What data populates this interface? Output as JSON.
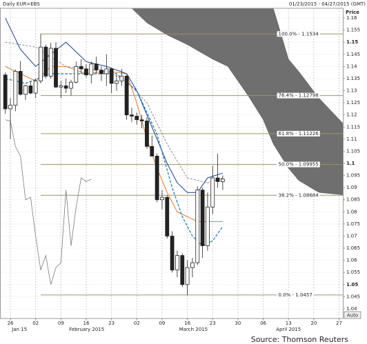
{
  "header": {
    "title": "Daily EUR=EBS",
    "range": "01/23/2015 - 04/27/2015 (GMT)",
    "axis_title": "Price",
    "auto_button": "Auto"
  },
  "source": "Source: Thomson Reuters",
  "chart_data": {
    "type": "candlestick",
    "xlim": [
      -1.05,
      66.75
    ],
    "xticks": [
      {
        "value": 1,
        "label": "26"
      },
      {
        "value": 6,
        "label": "02"
      },
      {
        "value": 11,
        "label": "09"
      },
      {
        "value": 16,
        "label": "16"
      },
      {
        "value": 21,
        "label": "23"
      },
      {
        "value": 26,
        "label": "02"
      },
      {
        "value": 31,
        "label": "09"
      },
      {
        "value": 36,
        "label": "16"
      },
      {
        "value": 41,
        "label": "23"
      },
      {
        "value": 46,
        "label": "30"
      },
      {
        "value": 51,
        "label": "06"
      },
      {
        "value": 56,
        "label": "13"
      },
      {
        "value": 61,
        "label": "20"
      },
      {
        "value": 66,
        "label": "27"
      }
    ],
    "months": [
      {
        "value": 2.8,
        "label": "Jan 15"
      },
      {
        "value": 16.1,
        "label": "February 2015"
      },
      {
        "value": 37.2,
        "label": "March 2015"
      },
      {
        "value": 56,
        "label": "April 2015"
      }
    ],
    "ylim": [
      1.036,
      1.164
    ],
    "yticks": [
      1.04,
      1.045,
      1.05,
      1.055,
      1.06,
      1.065,
      1.07,
      1.075,
      1.08,
      1.085,
      1.09,
      1.095,
      1.1,
      1.105,
      1.11,
      1.115,
      1.12,
      1.125,
      1.13,
      1.135,
      1.14,
      1.145,
      1.15,
      1.155,
      1.16
    ],
    "grid": true,
    "candles": {
      "x": [
        0,
        1,
        2,
        3,
        4,
        5,
        6,
        7,
        8,
        9,
        10,
        11,
        12,
        13,
        14,
        15,
        16,
        17,
        18,
        19,
        20,
        21,
        22,
        23,
        24,
        25,
        26,
        27,
        28,
        29,
        30,
        31,
        32,
        33,
        34,
        35,
        36,
        37,
        38,
        39,
        40,
        41,
        42,
        43
      ],
      "open": [
        1.1365,
        1.1225,
        1.124,
        1.138,
        1.1285,
        1.132,
        1.129,
        1.134,
        1.148,
        1.136,
        1.1475,
        1.1315,
        1.132,
        1.131,
        1.1335,
        1.14,
        1.139,
        1.1365,
        1.141,
        1.1385,
        1.137,
        1.139,
        1.133,
        1.134,
        1.136,
        1.12,
        1.1195,
        1.118,
        1.1175,
        1.107,
        1.103,
        1.085,
        1.086,
        1.07,
        1.056,
        1.062,
        1.05,
        1.057,
        1.059,
        1.089,
        1.066,
        1.082,
        1.094,
        1.0925
      ],
      "high": [
        1.1375,
        1.127,
        1.1387,
        1.1422,
        1.1325,
        1.134,
        1.135,
        1.1534,
        1.149,
        1.1497,
        1.15,
        1.134,
        1.135,
        1.1345,
        1.142,
        1.143,
        1.141,
        1.142,
        1.144,
        1.14,
        1.145,
        1.1395,
        1.1365,
        1.139,
        1.1365,
        1.123,
        1.121,
        1.12,
        1.119,
        1.1115,
        1.104,
        1.089,
        1.087,
        1.072,
        1.064,
        1.063,
        1.06,
        1.061,
        1.0905,
        1.09,
        1.088,
        1.099,
        1.104,
        1.095
      ],
      "low": [
        1.1205,
        1.11,
        1.1215,
        1.128,
        1.1262,
        1.1285,
        1.127,
        1.133,
        1.135,
        1.135,
        1.131,
        1.127,
        1.129,
        1.128,
        1.133,
        1.137,
        1.1355,
        1.133,
        1.137,
        1.134,
        1.132,
        1.129,
        1.13,
        1.132,
        1.118,
        1.117,
        1.116,
        1.1145,
        1.106,
        1.103,
        1.084,
        1.081,
        1.069,
        1.055,
        1.053,
        1.049,
        1.0457,
        1.053,
        1.058,
        1.061,
        1.064,
        1.079,
        1.09,
        1.089
      ],
      "close": [
        1.1225,
        1.124,
        1.138,
        1.1285,
        1.132,
        1.129,
        1.134,
        1.148,
        1.136,
        1.1475,
        1.1315,
        1.132,
        1.131,
        1.1335,
        1.14,
        1.139,
        1.1365,
        1.141,
        1.1385,
        1.137,
        1.139,
        1.133,
        1.134,
        1.136,
        1.12,
        1.1195,
        1.118,
        1.1175,
        1.107,
        1.103,
        1.085,
        1.086,
        1.07,
        1.056,
        1.062,
        1.05,
        1.057,
        1.059,
        1.089,
        1.066,
        1.082,
        1.094,
        1.0925,
        1.0935
      ]
    },
    "lines": [
      {
        "color": "#8a8a8a",
        "dash": "3,2",
        "width": 1,
        "x": [
          0,
          6,
          12,
          20,
          24,
          28,
          32,
          36,
          40,
          43
        ],
        "values": [
          1.15,
          1.148,
          1.14,
          1.138,
          1.134,
          1.125,
          1.108,
          1.094,
          1.092,
          1.094
        ]
      },
      {
        "color": "#e07a2a",
        "dash": "",
        "width": 1,
        "x": [
          0,
          3,
          6,
          9,
          12,
          16,
          20,
          24,
          26,
          28,
          30,
          32,
          34,
          36,
          38,
          40,
          43
        ],
        "values": [
          1.14,
          1.137,
          1.134,
          1.14,
          1.14,
          1.137,
          1.138,
          1.137,
          1.125,
          1.11,
          1.098,
          1.088,
          1.08,
          1.078,
          1.076,
          1.076,
          1.076
        ]
      },
      {
        "color": "#1a3f8c",
        "dash": "",
        "width": 1,
        "x": [
          0,
          3,
          6,
          9,
          12,
          16,
          20,
          24,
          26,
          28,
          30,
          32,
          34,
          36,
          38,
          40,
          43
        ],
        "values": [
          1.16,
          1.147,
          1.14,
          1.145,
          1.15,
          1.142,
          1.14,
          1.137,
          1.13,
          1.12,
          1.11,
          1.1,
          1.092,
          1.088,
          1.088,
          1.094,
          1.096
        ]
      },
      {
        "color": "#2a7fb0",
        "dash": "4,2",
        "width": 1.3,
        "x": [
          0,
          4,
          9,
          16,
          22,
          26,
          30,
          33,
          35,
          37,
          39,
          41,
          43
        ],
        "values": [
          1.135,
          1.133,
          1.137,
          1.137,
          1.137,
          1.13,
          1.112,
          1.09,
          1.078,
          1.07,
          1.066,
          1.068,
          1.074
        ]
      },
      {
        "color": "#7a7a7a",
        "dash": "",
        "width": 0.8,
        "x": [
          0,
          1,
          2,
          3,
          4,
          5,
          6,
          7,
          8,
          9,
          10,
          11,
          12,
          13,
          14,
          15,
          16,
          17
        ],
        "values": [
          1.118,
          1.1175,
          1.107,
          1.103,
          1.085,
          1.086,
          1.07,
          1.056,
          1.062,
          1.05,
          1.057,
          1.059,
          1.089,
          1.066,
          1.082,
          1.094,
          1.0925,
          1.0935
        ]
      }
    ],
    "cloud": {
      "color": "#6f6f6f",
      "x": [
        25,
        28,
        32,
        36,
        41,
        44,
        48,
        51,
        53,
        56,
        58,
        62,
        67
      ],
      "upper": [
        1.164,
        1.164,
        1.164,
        1.164,
        1.164,
        1.164,
        1.164,
        1.164,
        1.164,
        1.143,
        1.138,
        1.127,
        1.116
      ],
      "lower": [
        1.164,
        1.158,
        1.153,
        1.149,
        1.143,
        1.14,
        1.128,
        1.118,
        1.108,
        1.098,
        1.093,
        1.088,
        1.087
      ]
    },
    "fibs": {
      "color": "#9c9660",
      "from": 7,
      "label_x": 54,
      "levels": [
        {
          "value": 1.1534,
          "label": "100.0% - 1.1534"
        },
        {
          "value": 1.12798,
          "label": "76.4% - 1.12798"
        },
        {
          "value": 1.11226,
          "label": "61.8% - 1.11226"
        },
        {
          "value": 1.09955,
          "label": "50.0% - 1.09955"
        },
        {
          "value": 1.08684,
          "label": "38.2% - 1.08684"
        },
        {
          "value": 1.0457,
          "label": "0.0% - 1.0457"
        }
      ]
    }
  }
}
